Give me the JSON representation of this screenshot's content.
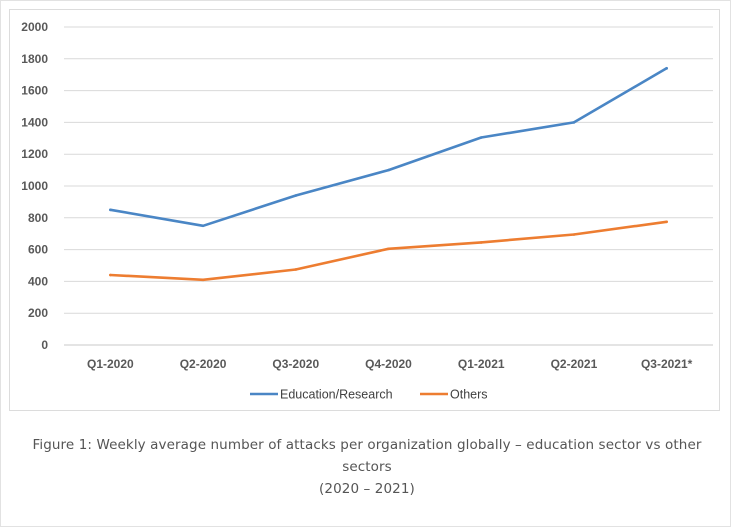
{
  "chart_data": {
    "type": "line",
    "categories": [
      "Q1-2020",
      "Q2-2020",
      "Q3-2020",
      "Q4-2020",
      "Q1-2021",
      "Q2-2021",
      "Q3-2021*"
    ],
    "series": [
      {
        "name": "Education/Research",
        "color": "#4a86c5",
        "values": [
          850,
          750,
          940,
          1100,
          1305,
          1400,
          1740
        ]
      },
      {
        "name": "Others",
        "color": "#ed7d31",
        "values": [
          440,
          410,
          475,
          605,
          645,
          695,
          775
        ]
      }
    ],
    "ylim": [
      0,
      2000
    ],
    "yticks": [
      0,
      200,
      400,
      600,
      800,
      1000,
      1200,
      1400,
      1600,
      1800,
      2000
    ],
    "grid": true,
    "legend": "bottom",
    "title": "",
    "xlabel": "",
    "ylabel": ""
  },
  "caption": {
    "line1": "Figure 1: Weekly average number of attacks per organization globally – education sector vs other sectors",
    "line2": "(2020 – 2021)"
  }
}
